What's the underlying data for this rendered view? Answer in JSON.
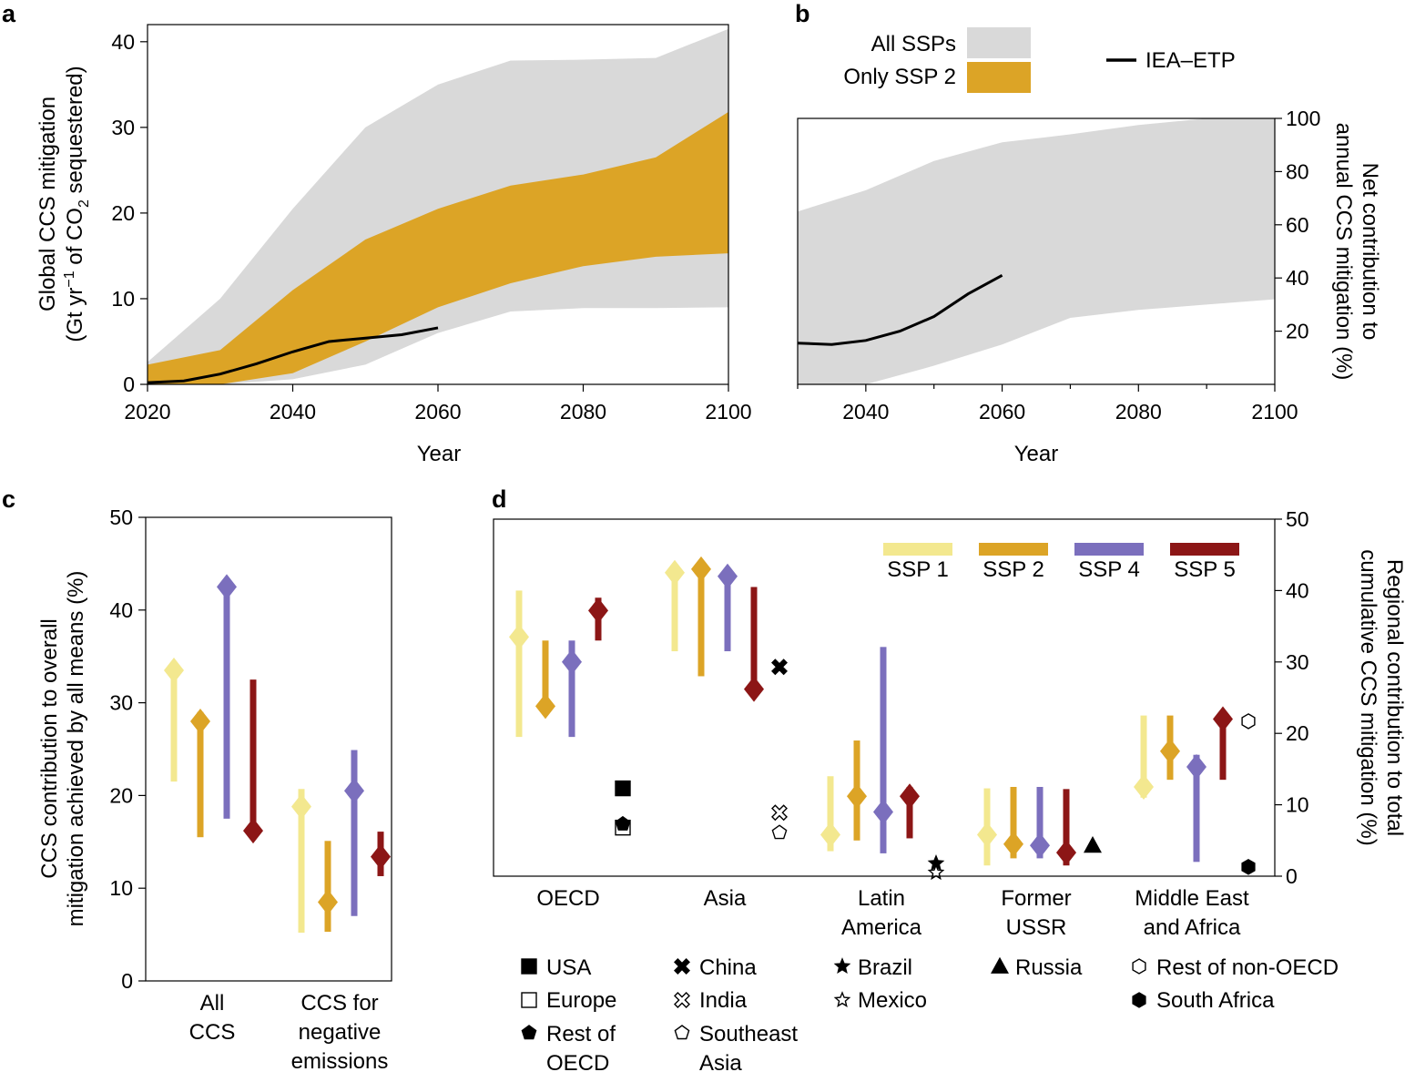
{
  "colors": {
    "all_ssps": "#d9d9d9",
    "ssp2_band": "#dca426",
    "iea": "#000000",
    "ssp1": "#f3e88f",
    "ssp2": "#dca426",
    "ssp4": "#7b6fbd",
    "ssp5": "#8c1616"
  },
  "panels": {
    "a": {
      "letter": "a"
    },
    "b": {
      "letter": "b"
    },
    "c": {
      "letter": "c"
    },
    "d": {
      "letter": "d"
    }
  },
  "legend_ab": {
    "all_ssps": "All SSPs",
    "only_ssp2": "Only SSP 2",
    "iea": "IEA–ETP"
  },
  "legend_d": {
    "ssp1": "SSP 1",
    "ssp2": "SSP 2",
    "ssp4": "SSP 4",
    "ssp5": "SSP 5"
  },
  "markers_legend": {
    "usa": "USA",
    "europe": "Europe",
    "rest_oecd_1": "Rest of",
    "rest_oecd_2": "OECD",
    "china": "China",
    "india": "India",
    "sea_1": "Southeast",
    "sea_2": "Asia",
    "brazil": "Brazil",
    "mexico": "Mexico",
    "russia": "Russia",
    "rest_non_oecd": "Rest of non-OECD",
    "south_africa": "South Africa"
  },
  "chart_data": [
    {
      "panel": "a",
      "type": "area",
      "xlabel": "Year",
      "ylabel_line1": "Global CCS mitigation",
      "ylabel_line2_pre": "(Gt yr",
      "ylabel_sup": "−1",
      "ylabel_line2_mid": " of CO",
      "ylabel_sub": "2",
      "ylabel_line2_post": " sequestered)",
      "xlim": [
        2020,
        2100
      ],
      "ylim": [
        0,
        42
      ],
      "xticks": [
        "2020",
        "2040",
        "2060",
        "2080",
        "2100"
      ],
      "yticks": [
        "0",
        "10",
        "20",
        "30",
        "40"
      ],
      "series": [
        {
          "name": "All SSPs",
          "x": [
            2020,
            2030,
            2040,
            2050,
            2060,
            2070,
            2080,
            2090,
            2100
          ],
          "upper": [
            2.6,
            10,
            20.5,
            30,
            35,
            37.8,
            37.9,
            38.1,
            41.5
          ],
          "lower": [
            0,
            0,
            0.6,
            2.3,
            6,
            8.5,
            8.9,
            8.9,
            9
          ]
        },
        {
          "name": "Only SSP 2",
          "x": [
            2020,
            2030,
            2040,
            2050,
            2060,
            2070,
            2080,
            2090,
            2100
          ],
          "upper": [
            2.3,
            4,
            11,
            16.9,
            20.5,
            23.2,
            24.5,
            26.5,
            31.8
          ],
          "lower": [
            0,
            0,
            1.3,
            5,
            9,
            11.8,
            13.8,
            14.9,
            15.3
          ]
        },
        {
          "name": "IEA–ETP",
          "x": [
            2020,
            2025,
            2030,
            2035,
            2040,
            2045,
            2050,
            2055,
            2060
          ],
          "y": [
            0.2,
            0.4,
            1.2,
            2.4,
            3.8,
            5,
            5.4,
            5.8,
            6.6
          ]
        }
      ]
    },
    {
      "panel": "b",
      "type": "area",
      "xlabel": "Year",
      "ylabel_line1": "Net contribution to",
      "ylabel_line2": "annual CCS mitigation (%)",
      "xlim": [
        2030,
        2100
      ],
      "ylim": [
        0,
        100
      ],
      "xticks": [
        "2040",
        "2060",
        "2080",
        "2100"
      ],
      "yticks": [
        "20",
        "40",
        "60",
        "80",
        "100"
      ],
      "series": [
        {
          "name": "All SSPs",
          "x": [
            2030,
            2040,
            2050,
            2060,
            2070,
            2080,
            2090,
            2100
          ],
          "upper": [
            65,
            73,
            84,
            91,
            94,
            97.5,
            100,
            100
          ],
          "lower": [
            0,
            0,
            7,
            15,
            25,
            28,
            30,
            32
          ]
        },
        {
          "name": "IEA–ETP",
          "x": [
            2030,
            2035,
            2040,
            2045,
            2050,
            2055,
            2060
          ],
          "y": [
            15.5,
            15,
            16.5,
            20,
            25.5,
            34,
            41
          ]
        }
      ]
    },
    {
      "panel": "c",
      "type": "range",
      "ylabel_line1": "CCS contribution to overall",
      "ylabel_line2": "mitigation achieved by all means (%)",
      "ylim": [
        0,
        50
      ],
      "yticks": [
        "0",
        "10",
        "20",
        "30",
        "40",
        "50"
      ],
      "groups": [
        {
          "label_lines": [
            "All",
            "CCS"
          ],
          "items": [
            {
              "ssp": "ssp1",
              "min": 21.5,
              "max": 33.5,
              "median": 33.5
            },
            {
              "ssp": "ssp2",
              "min": 15.5,
              "max": 29,
              "median": 28
            },
            {
              "ssp": "ssp4",
              "min": 17.5,
              "max": 42.5,
              "median": 42.5
            },
            {
              "ssp": "ssp5",
              "min": 16,
              "max": 32.5,
              "median": 16.2
            }
          ]
        },
        {
          "label_lines": [
            "CCS for",
            "negative",
            "emissions"
          ],
          "items": [
            {
              "ssp": "ssp1",
              "min": 5.2,
              "max": 20.7,
              "median": 18.8
            },
            {
              "ssp": "ssp2",
              "min": 5.3,
              "max": 15.1,
              "median": 8.5
            },
            {
              "ssp": "ssp4",
              "min": 7,
              "max": 24.9,
              "median": 20.5
            },
            {
              "ssp": "ssp5",
              "min": 11.3,
              "max": 16.1,
              "median": 13.4
            }
          ]
        }
      ]
    },
    {
      "panel": "d",
      "type": "range",
      "ylabel_line1": "Regional contribution to total",
      "ylabel_line2": "cumulative CCS mitigation (%)",
      "ylim": [
        0,
        50
      ],
      "yticks": [
        "0",
        "10",
        "20",
        "30",
        "40",
        "50"
      ],
      "groups": [
        {
          "label_lines": [
            "OECD"
          ],
          "items": [
            {
              "ssp": "ssp1",
              "min": 19.5,
              "max": 40,
              "median": 33.5
            },
            {
              "ssp": "ssp2",
              "min": 23,
              "max": 33,
              "median": 23.8
            },
            {
              "ssp": "ssp4",
              "min": 19.5,
              "max": 33,
              "median": 30
            },
            {
              "ssp": "ssp5",
              "min": 33,
              "max": 39,
              "median": 37.2
            }
          ],
          "countries": [
            {
              "name": "USA",
              "value": 12.3,
              "marker": "square-filled"
            },
            {
              "name": "Europe",
              "value": 6.8,
              "marker": "square-open"
            },
            {
              "name": "Rest of OECD",
              "value": 7.3,
              "marker": "pentagon-filled"
            }
          ]
        },
        {
          "label_lines": [
            "Asia"
          ],
          "items": [
            {
              "ssp": "ssp1",
              "min": 31.5,
              "max": 43.5,
              "median": 42.5
            },
            {
              "ssp": "ssp2",
              "min": 28,
              "max": 44,
              "median": 43
            },
            {
              "ssp": "ssp4",
              "min": 31.5,
              "max": 42.5,
              "median": 42
            },
            {
              "ssp": "ssp5",
              "min": 25,
              "max": 40.5,
              "median": 26.2
            }
          ],
          "countries": [
            {
              "name": "China",
              "value": 29.3,
              "marker": "x-filled"
            },
            {
              "name": "India",
              "value": 8.9,
              "marker": "x-open"
            },
            {
              "name": "Southeast Asia",
              "value": 6.1,
              "marker": "pentagon-open"
            }
          ]
        },
        {
          "label_lines": [
            "Latin",
            "America"
          ],
          "items": [
            {
              "ssp": "ssp1",
              "min": 3.5,
              "max": 14,
              "median": 5.8
            },
            {
              "ssp": "ssp2",
              "min": 5,
              "max": 19,
              "median": 11.2
            },
            {
              "ssp": "ssp4",
              "min": 3.2,
              "max": 32.1,
              "median": 9
            },
            {
              "ssp": "ssp5",
              "min": 5.3,
              "max": 12.5,
              "median": 11.2
            }
          ],
          "countries": [
            {
              "name": "Brazil",
              "value": 1.8,
              "marker": "star-filled"
            },
            {
              "name": "Mexico",
              "value": 0.5,
              "marker": "star-open"
            }
          ]
        },
        {
          "label_lines": [
            "Former",
            "USSR"
          ],
          "items": [
            {
              "ssp": "ssp1",
              "min": 1.5,
              "max": 12.3,
              "median": 5.8
            },
            {
              "ssp": "ssp2",
              "min": 2.5,
              "max": 12.5,
              "median": 4.5
            },
            {
              "ssp": "ssp4",
              "min": 2.5,
              "max": 12.5,
              "median": 4.3
            },
            {
              "ssp": "ssp5",
              "min": 1.5,
              "max": 12.2,
              "median": 3.3
            }
          ],
          "countries": [
            {
              "name": "Russia",
              "value": 4.3,
              "marker": "triangle-filled"
            }
          ]
        },
        {
          "label_lines": [
            "Middle East",
            "and Africa"
          ],
          "items": [
            {
              "ssp": "ssp1",
              "min": 11,
              "max": 22.5,
              "median": 12.5
            },
            {
              "ssp": "ssp2",
              "min": 13.5,
              "max": 22.5,
              "median": 17.5
            },
            {
              "ssp": "ssp4",
              "min": 2,
              "max": 17,
              "median": 15.3
            },
            {
              "ssp": "ssp5",
              "min": 13.5,
              "max": 22.5,
              "median": 22
            },
            {
              "ssp": "ssp5",
              "min": null,
              "max": null,
              "median": null
            }
          ],
          "countries": [
            {
              "name": "Rest of non-OECD",
              "value": 21.7,
              "marker": "hexagon-open"
            },
            {
              "name": "South Africa",
              "value": 1.3,
              "marker": "hexagon-filled"
            }
          ]
        }
      ]
    }
  ]
}
